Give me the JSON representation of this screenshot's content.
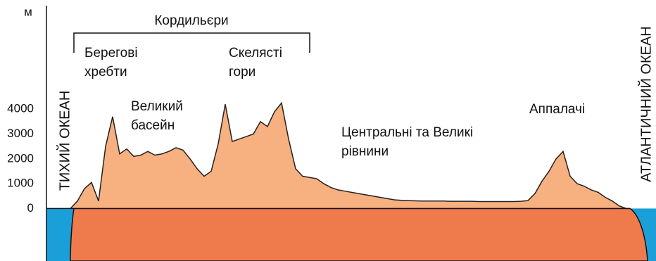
{
  "chart_data": {
    "type": "area",
    "ylabel": "м",
    "ylim": [
      -2000,
      8000
    ],
    "yticks": [
      0,
      1000,
      2000,
      3000,
      4000
    ],
    "values": [
      0,
      300,
      800,
      1050,
      300,
      2500,
      3700,
      2200,
      2400,
      2100,
      2150,
      2300,
      2150,
      2200,
      2300,
      2450,
      2350,
      2000,
      1600,
      1300,
      1500,
      2600,
      4200,
      2700,
      2800,
      2900,
      3000,
      3500,
      3300,
      3900,
      4250,
      2800,
      1600,
      1300,
      1250,
      1200,
      1000,
      850,
      750,
      700,
      650,
      600,
      550,
      500,
      450,
      400,
      350,
      330,
      320,
      310,
      300,
      300,
      300,
      300,
      290,
      290,
      290,
      290,
      280,
      280,
      280,
      280,
      280,
      280,
      290,
      320,
      600,
      1100,
      1500,
      2000,
      2300,
      1300,
      1000,
      900,
      750,
      650,
      450,
      300,
      100,
      0
    ],
    "land_color": "#f7b07f",
    "crust_color": "#ef7a4c",
    "ocean_color": "#1b9fd8",
    "group_label": "Кордильєри",
    "annotations": [
      "Берегові\nхребти",
      "Скелясті\nгори",
      "Великий\nбасейн",
      "Центральні та Великі\nрівнини",
      "Аппалачі"
    ],
    "ocean_left": "ТИХИЙ ОКЕАН",
    "ocean_right": "АТЛАНТИЧНИЙ ОКЕАН"
  }
}
